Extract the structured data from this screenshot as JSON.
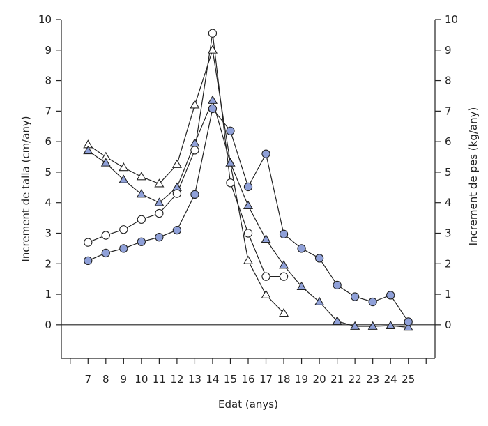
{
  "chart_data": {
    "type": "line",
    "xlabel": "Edat (anys)",
    "ylabel_left": "Increment de talla (cm/any)",
    "ylabel_right": "Increment de pes (kg/any)",
    "x_ticks": [
      7,
      8,
      9,
      10,
      11,
      12,
      13,
      14,
      15,
      16,
      17,
      18,
      19,
      20,
      21,
      22,
      23,
      24,
      25
    ],
    "y_ticks": [
      0,
      1,
      2,
      3,
      4,
      5,
      6,
      7,
      8,
      9,
      10
    ],
    "xlim": [
      5.5,
      26.5
    ],
    "ylim": [
      -1.1,
      10
    ],
    "grid": false,
    "reference_line_y": 0,
    "colors": {
      "filled_marker": "#8fa0d8",
      "open_marker": "#ffffff",
      "line": "#222222"
    },
    "series": [
      {
        "marker": "open-triangle",
        "points": [
          [
            7,
            5.9
          ],
          [
            8,
            5.5
          ],
          [
            9,
            5.15
          ],
          [
            10,
            4.85
          ],
          [
            11,
            4.62
          ],
          [
            12,
            5.25
          ],
          [
            13,
            7.2
          ],
          [
            14,
            9.0
          ],
          [
            15,
            5.3
          ],
          [
            16,
            2.1
          ],
          [
            17,
            0.98
          ],
          [
            18,
            0.38
          ]
        ]
      },
      {
        "marker": "filled-triangle",
        "points": [
          [
            7,
            5.7
          ],
          [
            8,
            5.3
          ],
          [
            9,
            4.75
          ],
          [
            10,
            4.28
          ],
          [
            11,
            4.0
          ],
          [
            12,
            4.5
          ],
          [
            13,
            5.95
          ],
          [
            14,
            7.35
          ],
          [
            15,
            5.3
          ],
          [
            16,
            3.9
          ],
          [
            17,
            2.8
          ],
          [
            18,
            1.95
          ],
          [
            19,
            1.25
          ],
          [
            20,
            0.75
          ],
          [
            21,
            0.12
          ],
          [
            22,
            -0.05
          ],
          [
            23,
            -0.05
          ],
          [
            24,
            -0.03
          ],
          [
            25,
            -0.08
          ]
        ]
      },
      {
        "marker": "open-circle",
        "points": [
          [
            7,
            2.7
          ],
          [
            8,
            2.93
          ],
          [
            9,
            3.12
          ],
          [
            10,
            3.45
          ],
          [
            11,
            3.65
          ],
          [
            12,
            4.3
          ],
          [
            13,
            5.72
          ],
          [
            14,
            9.55
          ],
          [
            15,
            4.65
          ],
          [
            16,
            3.0
          ],
          [
            17,
            1.58
          ],
          [
            18,
            1.58
          ]
        ]
      },
      {
        "marker": "filled-circle",
        "points": [
          [
            7,
            2.1
          ],
          [
            8,
            2.35
          ],
          [
            9,
            2.5
          ],
          [
            10,
            2.72
          ],
          [
            11,
            2.87
          ],
          [
            12,
            3.1
          ],
          [
            13,
            4.27
          ],
          [
            14,
            7.08
          ],
          [
            15,
            6.35
          ],
          [
            16,
            4.52
          ],
          [
            17,
            5.6
          ],
          [
            18,
            2.97
          ],
          [
            19,
            2.5
          ],
          [
            20,
            2.18
          ],
          [
            21,
            1.3
          ],
          [
            22,
            0.92
          ],
          [
            23,
            0.75
          ],
          [
            24,
            0.97
          ],
          [
            25,
            0.1
          ]
        ]
      }
    ]
  }
}
